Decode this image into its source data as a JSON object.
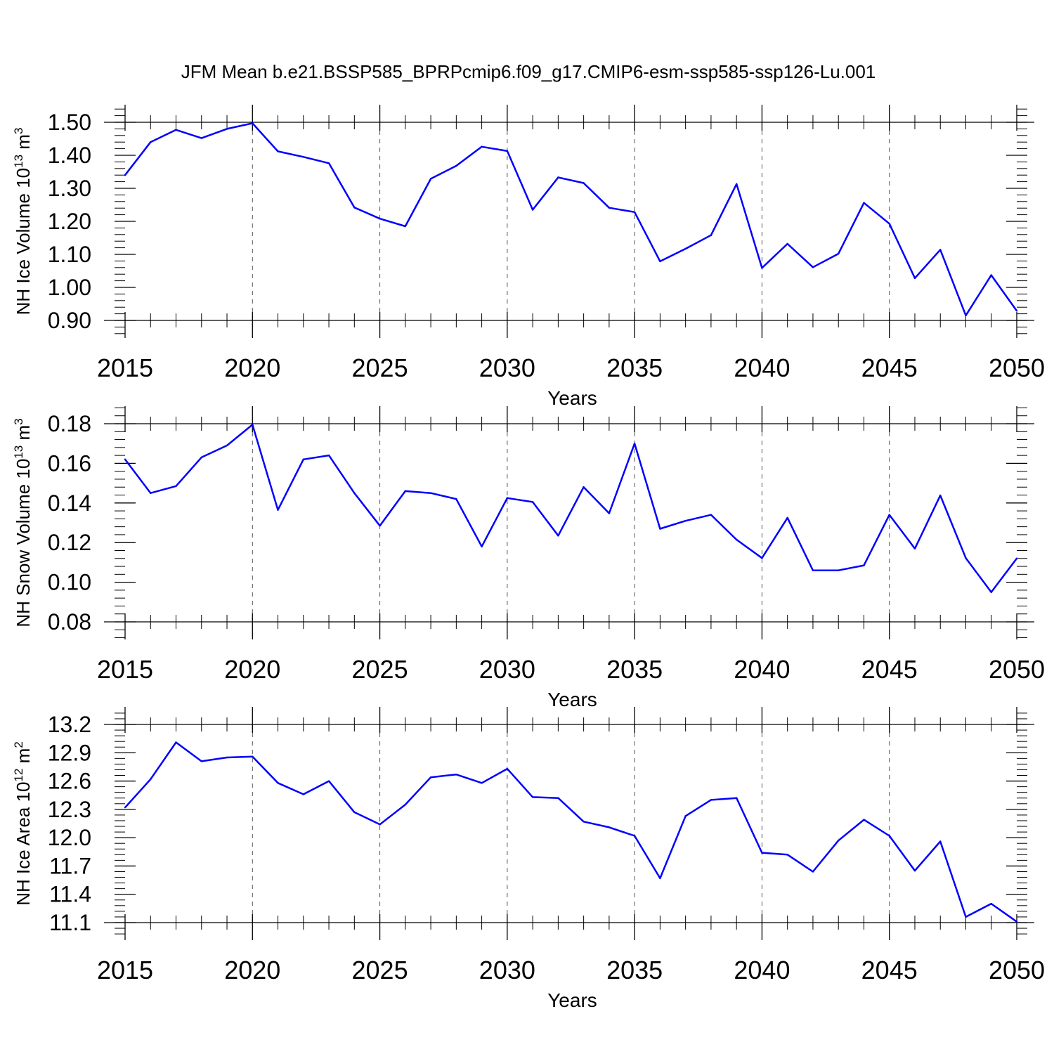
{
  "title": "JFM Mean b.e21.BSSP585_BPRPcmip6.f09_g17.CMIP6-esm-ssp585-ssp126-Lu.001",
  "colors": {
    "line": "#0000ff",
    "axis": "#000000",
    "grid": "#555555",
    "background": "#ffffff"
  },
  "chart_data": [
    {
      "type": "line",
      "title": "JFM Mean b.e21.BSSP585_BPRPcmip6.f09_g17.CMIP6-esm-ssp585-ssp126-Lu.001",
      "xlabel": "Years",
      "ylabel": "NH Ice Volume 10",
      "ylabel_sup": "13",
      "ylabel_unit": "m",
      "ylabel_unit_sup": "3",
      "xlim": [
        2015,
        2050
      ],
      "ylim": [
        0.9,
        1.5
      ],
      "xticks": [
        2015,
        2020,
        2025,
        2030,
        2035,
        2040,
        2045,
        2050
      ],
      "xtick_labels": [
        "2015",
        "2020",
        "2025",
        "2030",
        "2035",
        "2040",
        "2045",
        "2050"
      ],
      "yticks": [
        0.9,
        1.0,
        1.1,
        1.2,
        1.3,
        1.4,
        1.5
      ],
      "ytick_labels": [
        "0.90",
        "1.00",
        "1.10",
        "1.20",
        "1.30",
        "1.40",
        "1.50"
      ],
      "grid": "vertical dashed",
      "x": [
        2015,
        2016,
        2017,
        2018,
        2019,
        2020,
        2021,
        2022,
        2023,
        2024,
        2025,
        2026,
        2027,
        2028,
        2029,
        2030,
        2031,
        2032,
        2033,
        2034,
        2035,
        2036,
        2037,
        2038,
        2039,
        2040,
        2041,
        2042,
        2043,
        2044,
        2045,
        2046,
        2047,
        2048,
        2049,
        2050
      ],
      "values": [
        1.34,
        1.44,
        1.477,
        1.452,
        1.48,
        1.497,
        1.412,
        1.395,
        1.376,
        1.242,
        1.208,
        1.185,
        1.329,
        1.368,
        1.426,
        1.413,
        1.235,
        1.333,
        1.316,
        1.241,
        1.228,
        1.079,
        1.117,
        1.158,
        1.313,
        1.059,
        1.132,
        1.061,
        1.102,
        1.256,
        1.193,
        1.028,
        1.114,
        0.915,
        1.037,
        0.929
      ]
    },
    {
      "type": "line",
      "xlabel": "Years",
      "ylabel": "NH Snow Volume 10",
      "ylabel_sup": "13",
      "ylabel_unit": "m",
      "ylabel_unit_sup": "3",
      "xlim": [
        2015,
        2050
      ],
      "ylim": [
        0.08,
        0.18
      ],
      "xticks": [
        2015,
        2020,
        2025,
        2030,
        2035,
        2040,
        2045,
        2050
      ],
      "xtick_labels": [
        "2015",
        "2020",
        "2025",
        "2030",
        "2035",
        "2040",
        "2045",
        "2050"
      ],
      "yticks": [
        0.08,
        0.1,
        0.12,
        0.14,
        0.16,
        0.18
      ],
      "ytick_labels": [
        "0.08",
        "0.10",
        "0.12",
        "0.14",
        "0.16",
        "0.18"
      ],
      "grid": "vertical dashed",
      "x": [
        2015,
        2016,
        2017,
        2018,
        2019,
        2020,
        2021,
        2022,
        2023,
        2024,
        2025,
        2026,
        2027,
        2028,
        2029,
        2030,
        2031,
        2032,
        2033,
        2034,
        2035,
        2036,
        2037,
        2038,
        2039,
        2040,
        2041,
        2042,
        2043,
        2044,
        2045,
        2046,
        2047,
        2048,
        2049,
        2050
      ],
      "values": [
        0.162,
        0.145,
        0.1485,
        0.163,
        0.169,
        0.1795,
        0.1365,
        0.162,
        0.164,
        0.145,
        0.1285,
        0.146,
        0.145,
        0.142,
        0.118,
        0.1425,
        0.1405,
        0.1235,
        0.148,
        0.1348,
        0.17,
        0.127,
        0.131,
        0.134,
        0.1215,
        0.1122,
        0.1325,
        0.106,
        0.106,
        0.1085,
        0.134,
        0.117,
        0.1438,
        0.1122,
        0.095,
        0.112
      ]
    },
    {
      "type": "line",
      "xlabel": "Years",
      "ylabel": "NH Ice Area 10",
      "ylabel_sup": "12",
      "ylabel_unit": "m",
      "ylabel_unit_sup": "2",
      "xlim": [
        2015,
        2050
      ],
      "ylim": [
        11.1,
        13.2
      ],
      "xticks": [
        2015,
        2020,
        2025,
        2030,
        2035,
        2040,
        2045,
        2050
      ],
      "xtick_labels": [
        "2015",
        "2020",
        "2025",
        "2030",
        "2035",
        "2040",
        "2045",
        "2050"
      ],
      "yticks": [
        11.1,
        11.4,
        11.7,
        12.0,
        12.3,
        12.6,
        12.9,
        13.2
      ],
      "ytick_labels": [
        "11.1",
        "11.4",
        "11.7",
        "12.0",
        "12.3",
        "12.6",
        "12.9",
        "13.2"
      ],
      "grid": "vertical dashed",
      "x": [
        2015,
        2016,
        2017,
        2018,
        2019,
        2020,
        2021,
        2022,
        2023,
        2024,
        2025,
        2026,
        2027,
        2028,
        2029,
        2030,
        2031,
        2032,
        2033,
        2034,
        2035,
        2036,
        2037,
        2038,
        2039,
        2040,
        2041,
        2042,
        2043,
        2044,
        2045,
        2046,
        2047,
        2048,
        2049,
        2050
      ],
      "values": [
        12.32,
        12.62,
        13.01,
        12.81,
        12.85,
        12.86,
        12.58,
        12.46,
        12.6,
        12.27,
        12.14,
        12.35,
        12.64,
        12.67,
        12.58,
        12.73,
        12.43,
        12.42,
        12.17,
        12.11,
        12.02,
        11.57,
        12.23,
        12.4,
        12.42,
        11.84,
        11.82,
        11.64,
        11.97,
        12.19,
        12.02,
        11.65,
        11.96,
        11.16,
        11.3,
        11.11
      ]
    }
  ]
}
